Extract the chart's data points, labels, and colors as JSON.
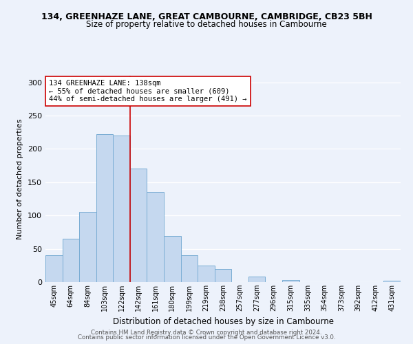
{
  "title1": "134, GREENHAZE LANE, GREAT CAMBOURNE, CAMBRIDGE, CB23 5BH",
  "title2": "Size of property relative to detached houses in Cambourne",
  "xlabel": "Distribution of detached houses by size in Cambourne",
  "ylabel": "Number of detached properties",
  "bar_labels": [
    "45sqm",
    "64sqm",
    "84sqm",
    "103sqm",
    "122sqm",
    "142sqm",
    "161sqm",
    "180sqm",
    "199sqm",
    "219sqm",
    "238sqm",
    "257sqm",
    "277sqm",
    "296sqm",
    "315sqm",
    "335sqm",
    "354sqm",
    "373sqm",
    "392sqm",
    "412sqm",
    "431sqm"
  ],
  "bar_values": [
    40,
    65,
    105,
    222,
    220,
    170,
    135,
    69,
    40,
    25,
    20,
    0,
    8,
    0,
    3,
    0,
    0,
    0,
    0,
    0,
    2
  ],
  "bar_color": "#c5d8ef",
  "bar_edge_color": "#7aadd4",
  "vline_color": "#cc0000",
  "annotation_text": "134 GREENHAZE LANE: 138sqm\n← 55% of detached houses are smaller (609)\n44% of semi-detached houses are larger (491) →",
  "annotation_box_color": "#ffffff",
  "annotation_box_edge": "#cc0000",
  "footer1": "Contains HM Land Registry data © Crown copyright and database right 2024.",
  "footer2": "Contains public sector information licensed under the Open Government Licence v3.0.",
  "ylim": [
    0,
    310
  ],
  "background_color": "#edf2fb",
  "grid_color": "#ffffff",
  "title1_fontsize": 9,
  "title2_fontsize": 8.5,
  "ylabel_fontsize": 8,
  "xlabel_fontsize": 8.5,
  "tick_fontsize": 7,
  "ann_fontsize": 7.5,
  "footer_fontsize": 6.2
}
